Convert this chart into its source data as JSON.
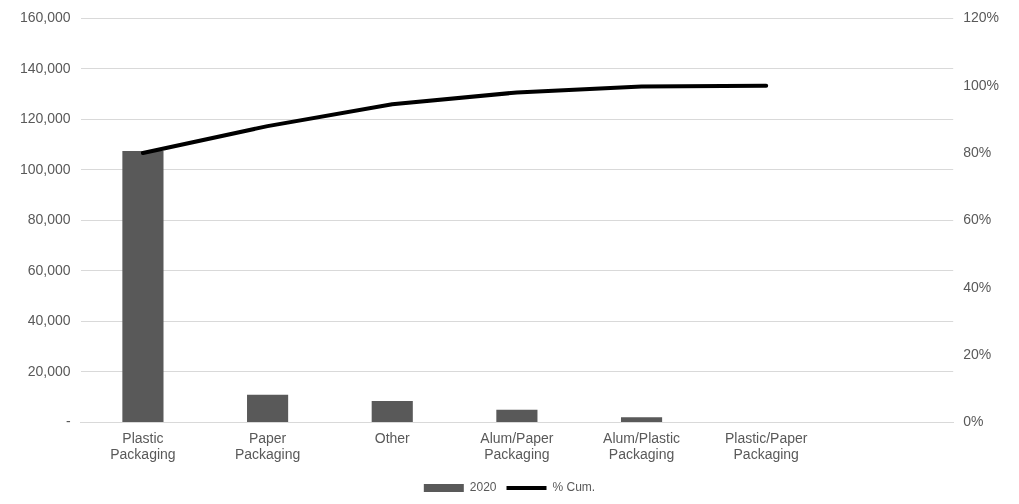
{
  "chart_data": {
    "type": "bar",
    "categories": [
      "Plastic Packaging",
      "Paper Packaging",
      "Other",
      "Alum/Paper Packaging",
      "Alum/Plastic Packaging",
      "Plastic/Paper Packaging",
      null
    ],
    "series": [
      {
        "name": "2020",
        "color": "#595959",
        "values": [
          107500,
          11000,
          8500,
          5000,
          2000,
          null,
          null
        ]
      },
      {
        "name": "% Cum.",
        "type": "line",
        "axis": "y2",
        "color": "#000000",
        "values": [
          80,
          88,
          94.5,
          98,
          99.8,
          100,
          null
        ]
      }
    ],
    "ylim": [
      0,
      160000
    ],
    "yticks": [
      {
        "value": 0,
        "label": "-"
      },
      {
        "value": 20000,
        "label": "20,000"
      },
      {
        "value": 40000,
        "label": "40,000"
      },
      {
        "value": 60000,
        "label": "60,000"
      },
      {
        "value": 80000,
        "label": "80,000"
      },
      {
        "value": 100000,
        "label": "100,000"
      },
      {
        "value": 120000,
        "label": "120,000"
      },
      {
        "value": 140000,
        "label": "140,000"
      },
      {
        "value": 160000,
        "label": "160,000"
      }
    ],
    "y2lim": [
      0,
      120
    ],
    "y2ticks": [
      {
        "value": 0,
        "label": "0%"
      },
      {
        "value": 20,
        "label": "20%"
      },
      {
        "value": 40,
        "label": "40%"
      },
      {
        "value": 60,
        "label": "60%"
      },
      {
        "value": 80,
        "label": "80%"
      },
      {
        "value": 100,
        "label": "100%"
      },
      {
        "value": 120,
        "label": "120%"
      }
    ],
    "grid": "y",
    "legend": "bottom",
    "marker": "none",
    "line_style": "solid"
  }
}
